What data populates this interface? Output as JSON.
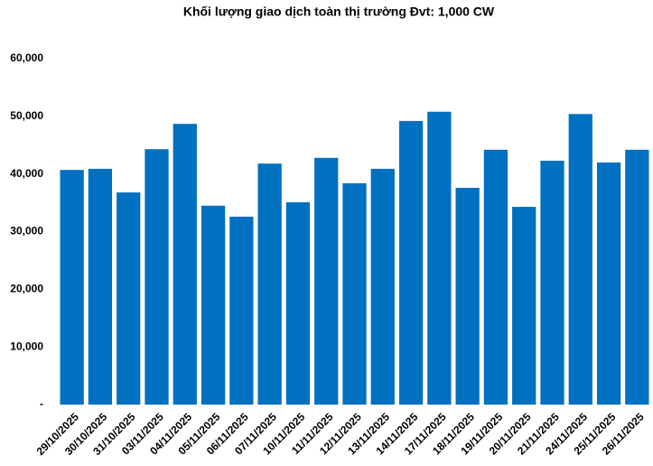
{
  "chart_data": {
    "type": "bar",
    "title": "Khối lượng giao dịch toàn thị trường Đvt: 1,000 CW",
    "categories": [
      "29/10/2025",
      "30/10/2025",
      "31/10/2025",
      "03/11/2025",
      "04/11/2025",
      "05/11/2025",
      "06/11/2025",
      "07/11/2025",
      "10/11/2025",
      "11/11/2025",
      "12/11/2025",
      "13/11/2025",
      "14/11/2025",
      "17/11/2025",
      "18/11/2025",
      "19/11/2025",
      "20/11/2025",
      "21/11/2025",
      "24/11/2025",
      "25/11/2025",
      "26/11/2025"
    ],
    "values": [
      40700,
      40900,
      36800,
      44300,
      48700,
      34500,
      32600,
      41800,
      35100,
      42800,
      38400,
      40900,
      49200,
      50800,
      37600,
      44200,
      34300,
      42300,
      50400,
      42000,
      44200
    ],
    "color": "#0070c0",
    "ylim": [
      0,
      60000
    ],
    "yticks": [
      {
        "value": 0,
        "label": "-"
      },
      {
        "value": 10000,
        "label": "10,000"
      },
      {
        "value": 20000,
        "label": "20,000"
      },
      {
        "value": 30000,
        "label": "30,000"
      },
      {
        "value": 40000,
        "label": "40,000"
      },
      {
        "value": 50000,
        "label": "50,000"
      },
      {
        "value": 60000,
        "label": "60,000"
      }
    ],
    "grid": false
  }
}
